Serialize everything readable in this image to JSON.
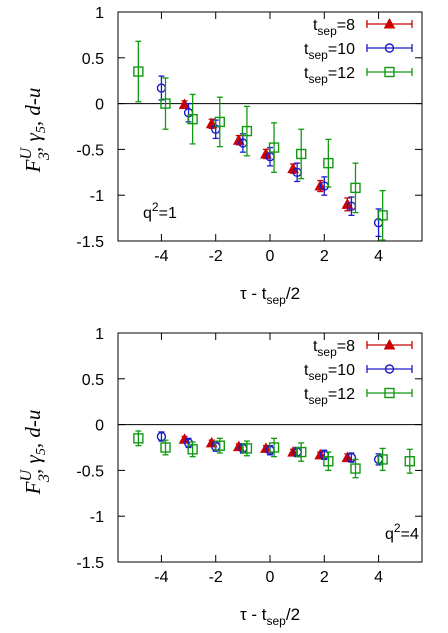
{
  "chart_data": [
    {
      "type": "scatter",
      "xlabel_main": "τ - t",
      "xlabel_sub": "sep",
      "xlabel_tail": "/2",
      "ylabel": {
        "base": "F",
        "sup": "U",
        "sub": "3",
        "rest": ", γ",
        "rest_sub": "5",
        "tail": ", d-u"
      },
      "xlim": [
        -5.6,
        5.6
      ],
      "ylim": [
        -1.5,
        1
      ],
      "xticks": [
        "-4",
        "-2",
        "0",
        "2",
        "4"
      ],
      "xtick_values": [
        -4,
        -2,
        0,
        2,
        4
      ],
      "yticks": [
        "1",
        "0.5",
        "0",
        "-0.5",
        "-1",
        "-1.5"
      ],
      "ytick_values": [
        1,
        0.5,
        0,
        -0.5,
        -1,
        -1.5
      ],
      "annotation": {
        "text": "q",
        "sup": "2",
        "tail": "=1",
        "placement": "bottom-left"
      },
      "legend_placement": "top-right",
      "series": [
        {
          "name": "t",
          "name_sub": "sep",
          "name_tail": "=8",
          "color": "#cc0000",
          "marker": "triangle",
          "x": [
            -3,
            -2,
            -1,
            0,
            1,
            2,
            3
          ],
          "y": [
            -0.01,
            -0.22,
            -0.4,
            -0.55,
            -0.71,
            -0.9,
            -1.1
          ],
          "err": [
            0.04,
            0.05,
            0.05,
            0.05,
            0.05,
            0.06,
            0.07
          ]
        },
        {
          "name": "t",
          "name_sub": "sep",
          "name_tail": "=10",
          "color": "#1a1acc",
          "marker": "circle",
          "x": [
            -4,
            -3,
            -2,
            -1,
            0,
            1,
            2,
            3,
            4
          ],
          "y": [
            0.17,
            -0.1,
            -0.28,
            -0.43,
            -0.58,
            -0.75,
            -0.9,
            -1.12,
            -1.3
          ],
          "err": [
            0.13,
            0.1,
            0.1,
            0.1,
            0.1,
            0.1,
            0.1,
            0.1,
            0.15
          ]
        },
        {
          "name": "t",
          "name_sub": "sep",
          "name_tail": "=12",
          "color": "#119911",
          "marker": "square",
          "x": [
            -5,
            -4,
            -3,
            -2,
            -1,
            0,
            1,
            2,
            3,
            4
          ],
          "y": [
            0.35,
            0.0,
            -0.17,
            -0.2,
            -0.3,
            -0.48,
            -0.55,
            -0.65,
            -0.92,
            -1.22
          ],
          "err": [
            0.33,
            0.28,
            0.27,
            0.27,
            0.27,
            0.27,
            0.27,
            0.26,
            0.27,
            0.27
          ]
        }
      ]
    },
    {
      "type": "scatter",
      "xlabel_main": "τ - t",
      "xlabel_sub": "sep",
      "xlabel_tail": "/2",
      "ylabel": {
        "base": "F",
        "sup": "U",
        "sub": "3",
        "rest": ", γ",
        "rest_sub": "5",
        "tail": ", d-u"
      },
      "xlim": [
        -5.6,
        5.6
      ],
      "ylim": [
        -1.5,
        1
      ],
      "xticks": [
        "-4",
        "-2",
        "0",
        "2",
        "4"
      ],
      "xtick_values": [
        -4,
        -2,
        0,
        2,
        4
      ],
      "yticks": [
        "1",
        "0.5",
        "0",
        "-0.5",
        "-1",
        "-1.5"
      ],
      "ytick_values": [
        1,
        0.5,
        0,
        -0.5,
        -1,
        -1.5
      ],
      "annotation": {
        "text": "q",
        "sup": "2",
        "tail": "=4",
        "placement": "bottom-right"
      },
      "legend_placement": "top-right",
      "series": [
        {
          "name": "t",
          "name_sub": "sep",
          "name_tail": "=8",
          "color": "#cc0000",
          "marker": "triangle",
          "x": [
            -3,
            -2,
            -1,
            0,
            1,
            2,
            3
          ],
          "y": [
            -0.16,
            -0.2,
            -0.24,
            -0.26,
            -0.3,
            -0.33,
            -0.36
          ],
          "err": [
            0.03,
            0.03,
            0.03,
            0.03,
            0.03,
            0.03,
            0.04
          ]
        },
        {
          "name": "t",
          "name_sub": "sep",
          "name_tail": "=10",
          "color": "#1a1acc",
          "marker": "circle",
          "x": [
            -4,
            -3,
            -2,
            -1,
            0,
            1,
            2,
            3,
            4
          ],
          "y": [
            -0.13,
            -0.2,
            -0.24,
            -0.26,
            -0.28,
            -0.3,
            -0.33,
            -0.36,
            -0.38
          ],
          "err": [
            0.05,
            0.05,
            0.05,
            0.05,
            0.05,
            0.05,
            0.05,
            0.05,
            0.06
          ]
        },
        {
          "name": "t",
          "name_sub": "sep",
          "name_tail": "=12",
          "color": "#119911",
          "marker": "square",
          "x": [
            -5,
            -4,
            -3,
            -2,
            -1,
            0,
            1,
            2,
            3,
            4,
            5
          ],
          "y": [
            -0.15,
            -0.25,
            -0.27,
            -0.23,
            -0.26,
            -0.25,
            -0.3,
            -0.4,
            -0.48,
            -0.38,
            -0.4
          ],
          "err": [
            0.08,
            0.08,
            0.08,
            0.08,
            0.08,
            0.1,
            0.1,
            0.1,
            0.1,
            0.12,
            0.13
          ]
        }
      ]
    }
  ]
}
